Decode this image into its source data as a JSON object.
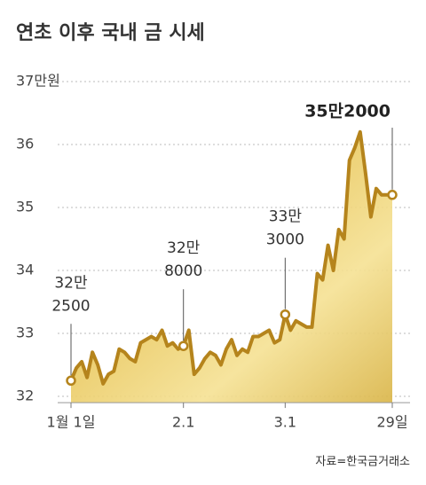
{
  "chart_data": {
    "type": "line",
    "title": "연초 이후 국내 금 시세",
    "source": "자료=한국금거래소",
    "categories": [
      "1월 1일",
      null,
      null,
      null,
      null,
      null,
      null,
      null,
      null,
      null,
      null,
      null,
      null,
      null,
      null,
      null,
      null,
      null,
      null,
      null,
      null,
      "2.1",
      null,
      null,
      null,
      null,
      null,
      null,
      null,
      null,
      null,
      null,
      null,
      null,
      null,
      null,
      null,
      null,
      null,
      null,
      "3.1",
      null,
      null,
      null,
      null,
      null,
      null,
      null,
      null,
      null,
      null,
      null,
      null,
      null,
      null,
      null,
      null,
      null,
      null,
      null,
      "29일"
    ],
    "values": [
      32.25,
      32.45,
      32.55,
      32.3,
      32.7,
      32.5,
      32.2,
      32.35,
      32.4,
      32.75,
      32.7,
      32.6,
      32.55,
      32.85,
      32.9,
      32.95,
      32.9,
      33.05,
      32.8,
      32.85,
      32.75,
      32.8,
      33.05,
      32.35,
      32.45,
      32.6,
      32.7,
      32.65,
      32.5,
      32.75,
      32.9,
      32.65,
      32.75,
      32.7,
      32.95,
      32.95,
      33.0,
      33.05,
      32.85,
      32.9,
      33.3,
      33.05,
      33.2,
      33.15,
      33.1,
      33.1,
      33.95,
      33.85,
      34.4,
      34.0,
      34.65,
      34.5,
      35.75,
      35.95,
      36.2,
      35.55,
      34.85,
      35.3,
      35.2,
      35.2,
      35.2
    ],
    "value_labels": [
      [
        "32만",
        "2500"
      ],
      null,
      null,
      null,
      null,
      null,
      null,
      null,
      null,
      null,
      null,
      null,
      null,
      null,
      null,
      null,
      null,
      null,
      null,
      null,
      null,
      [
        "32만",
        "8000"
      ],
      null,
      null,
      null,
      null,
      null,
      null,
      null,
      null,
      null,
      null,
      null,
      null,
      null,
      null,
      null,
      null,
      null,
      null,
      [
        "33만",
        "3000"
      ],
      null,
      null,
      null,
      null,
      null,
      null,
      null,
      null,
      null,
      null,
      null,
      null,
      null,
      null,
      null,
      null,
      null,
      null,
      null,
      [
        "35만2000"
      ]
    ],
    "color": "#b5841c",
    "ylim": [
      31.9,
      37
    ],
    "yticks": [
      32,
      33,
      34,
      35,
      36,
      {
        "value": 37,
        "label": "37만원"
      }
    ],
    "grid": true
  }
}
